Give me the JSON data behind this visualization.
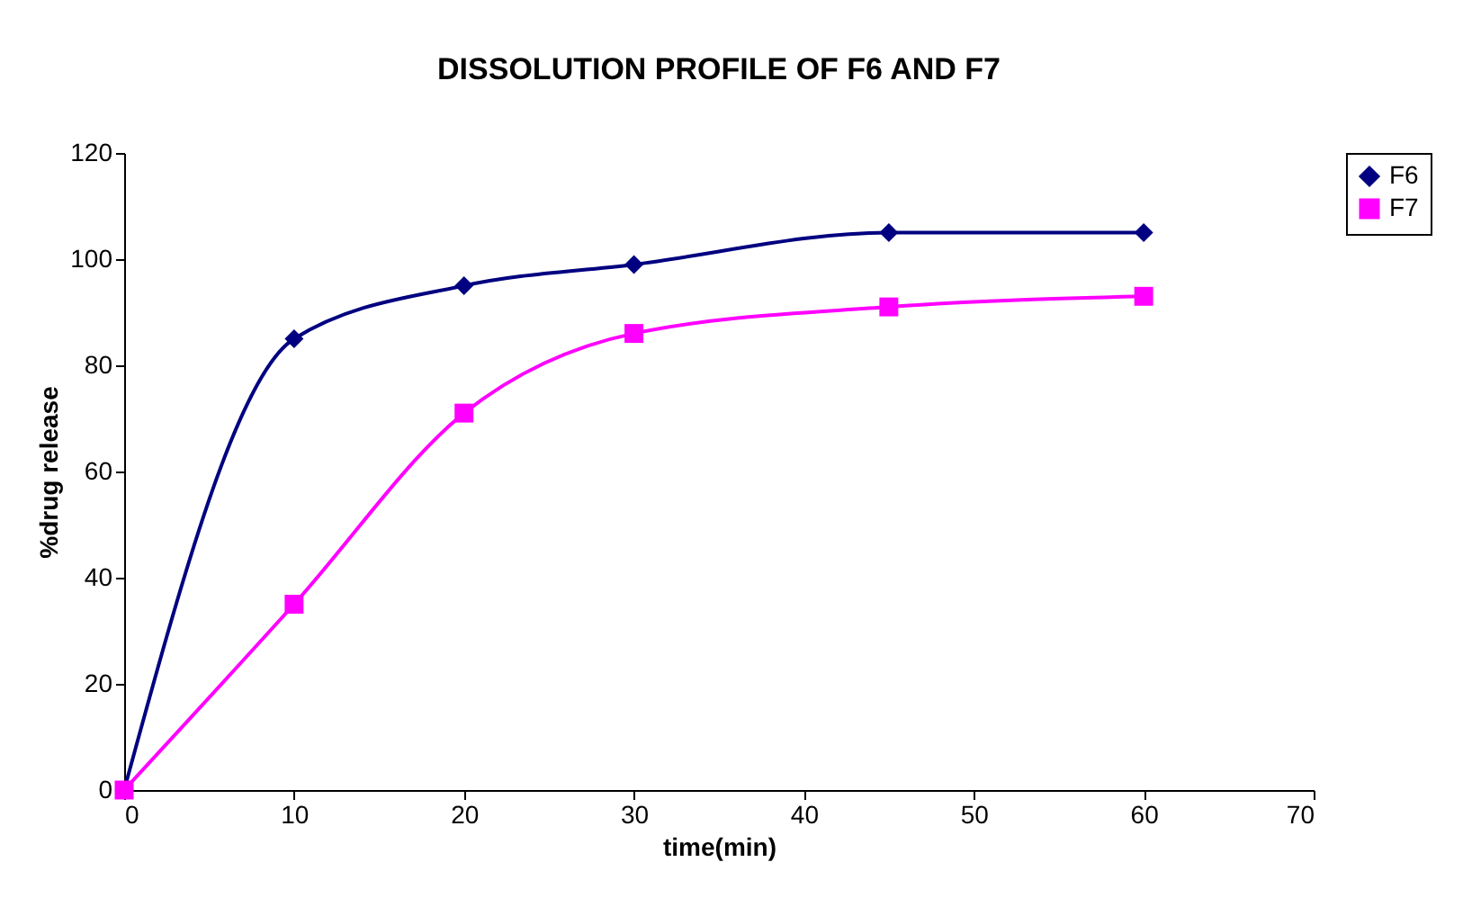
{
  "chart_data": {
    "type": "line",
    "title": "DISSOLUTION PROFILE OF F6 AND F7",
    "xlabel": "time(min)",
    "ylabel": "%drug release",
    "x": [
      0,
      10,
      20,
      30,
      45,
      60
    ],
    "series": [
      {
        "name": "F6",
        "color": "#000080",
        "marker": "diamond",
        "values": [
          0,
          85,
          95,
          99,
          105,
          105
        ]
      },
      {
        "name": "F7",
        "color": "#ff00ff",
        "marker": "square",
        "values": [
          0,
          35,
          71,
          86,
          91,
          93
        ]
      }
    ],
    "xlim": [
      0,
      70
    ],
    "xticks": [
      0,
      10,
      20,
      30,
      40,
      50,
      60,
      70
    ],
    "ylim": [
      0,
      120
    ],
    "yticks": [
      0,
      20,
      40,
      60,
      80,
      100,
      120
    ],
    "grid": false,
    "legend": "right",
    "line_style": "solid"
  }
}
